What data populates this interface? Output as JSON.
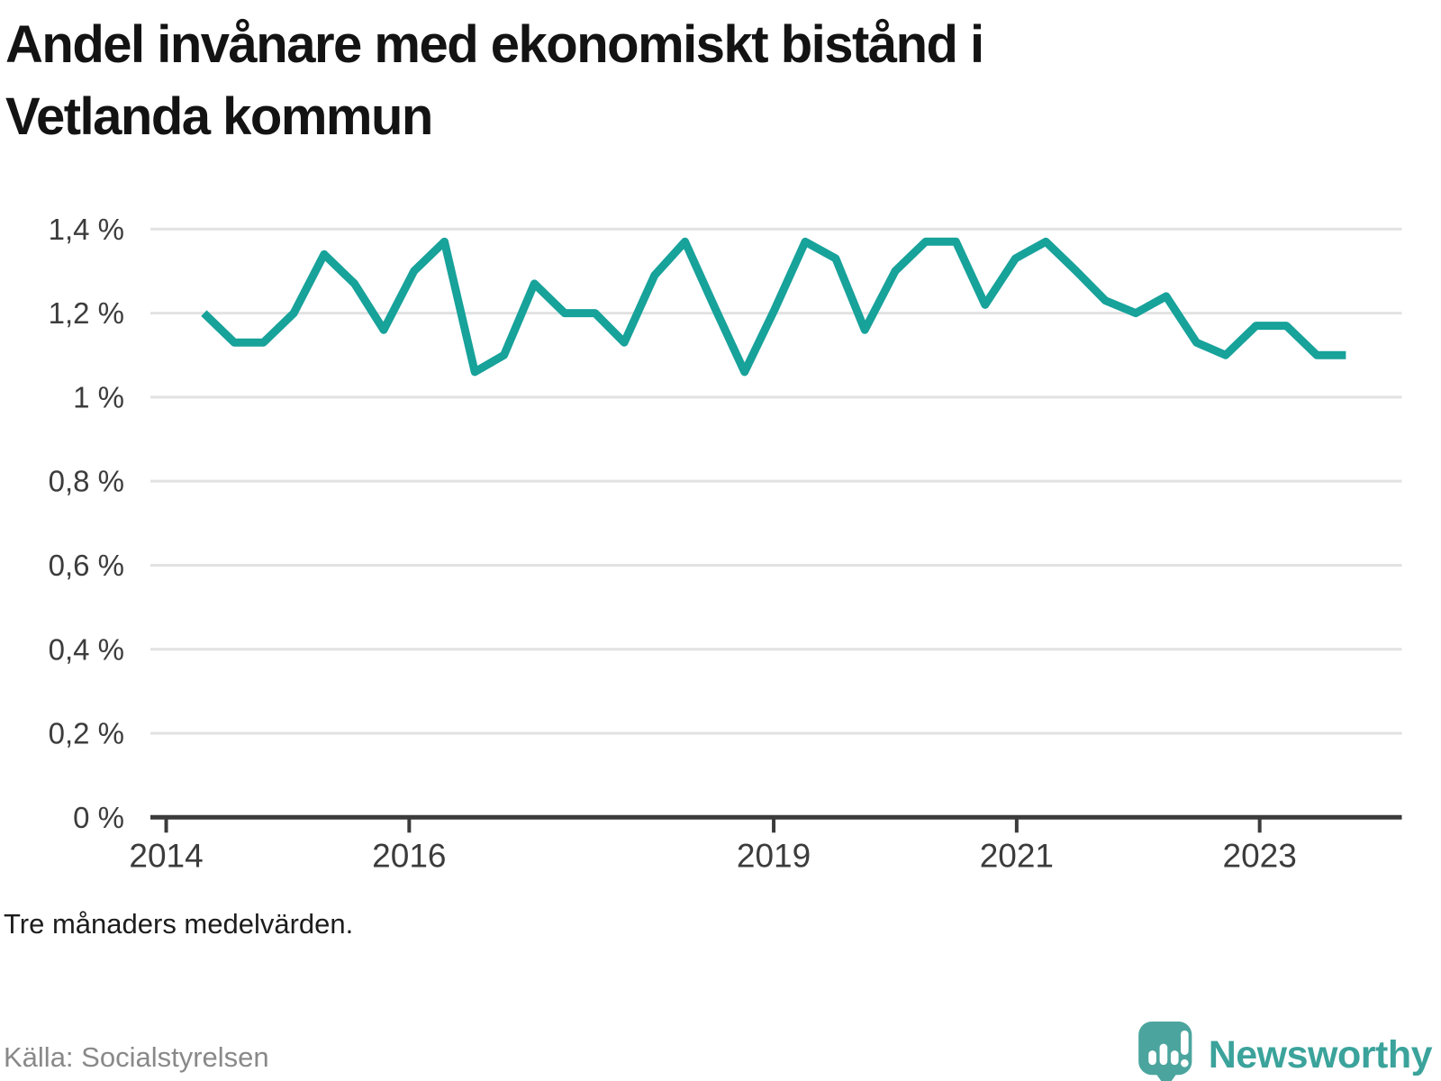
{
  "title": {
    "line1": "Andel invånare med ekonomiskt bistånd i",
    "line2": "Vetlanda kommun"
  },
  "footnote": "Tre månaders medelvärden.",
  "source": "Källa: Socialstyrelsen",
  "logo": {
    "label": "Newsworthy",
    "icon": "newsworthy-speech-bubble-bar-chart-icon"
  },
  "colors": {
    "line": "#17A29A",
    "grid": "#E2E2E2",
    "axis": "#3B3B3B",
    "tick_label": "#3C3C3C",
    "title": "#131313",
    "source": "#898989",
    "logo": "#3BA39B",
    "logo_bubble": "#4BA59E"
  },
  "chart_data": {
    "type": "line",
    "title": "Andel invånare med ekonomiskt bistånd i Vetlanda kommun",
    "xlabel": "",
    "ylabel": "",
    "unit": "%",
    "grid": "horizontal",
    "legend": "none",
    "x_domain": [
      2013.87,
      2024.17
    ],
    "y_domain": [
      0,
      1.4
    ],
    "x_ticks": [
      {
        "value": 2014,
        "label": "2014"
      },
      {
        "value": 2016,
        "label": "2016"
      },
      {
        "value": 2019,
        "label": "2019"
      },
      {
        "value": 2021,
        "label": "2021"
      },
      {
        "value": 2023,
        "label": "2023"
      }
    ],
    "y_ticks": [
      {
        "value": 1.4,
        "label": "1,4 %"
      },
      {
        "value": 1.2,
        "label": "1,2 %"
      },
      {
        "value": 1.0,
        "label": "1 %"
      },
      {
        "value": 0.8,
        "label": "0,8 %"
      },
      {
        "value": 0.6,
        "label": "0,6 %"
      },
      {
        "value": 0.4,
        "label": "0,4 %"
      },
      {
        "value": 0.2,
        "label": "0,2 %"
      },
      {
        "value": 0.0,
        "label": "0 %"
      }
    ],
    "series": [
      {
        "name": "Andel invånare med ekonomiskt bistånd",
        "x": [
          2014.31,
          2014.56,
          2014.8,
          2015.05,
          2015.3,
          2015.55,
          2015.79,
          2016.04,
          2016.29,
          2016.54,
          2016.78,
          2017.03,
          2017.28,
          2017.53,
          2017.77,
          2018.02,
          2018.27,
          2018.52,
          2018.76,
          2019.01,
          2019.26,
          2019.51,
          2019.75,
          2020.0,
          2020.25,
          2020.5,
          2020.74,
          2020.99,
          2021.24,
          2021.49,
          2021.73,
          2021.98,
          2022.23,
          2022.48,
          2022.72,
          2022.97,
          2023.22,
          2023.47,
          2023.71
        ],
        "values": [
          1.2,
          1.13,
          1.13,
          1.2,
          1.34,
          1.27,
          1.16,
          1.3,
          1.37,
          1.06,
          1.1,
          1.27,
          1.2,
          1.2,
          1.13,
          1.29,
          1.37,
          1.21,
          1.06,
          1.21,
          1.37,
          1.33,
          1.16,
          1.3,
          1.37,
          1.37,
          1.22,
          1.33,
          1.37,
          1.3,
          1.23,
          1.2,
          1.24,
          1.13,
          1.1,
          1.17,
          1.17,
          1.1,
          1.1
        ]
      }
    ]
  }
}
